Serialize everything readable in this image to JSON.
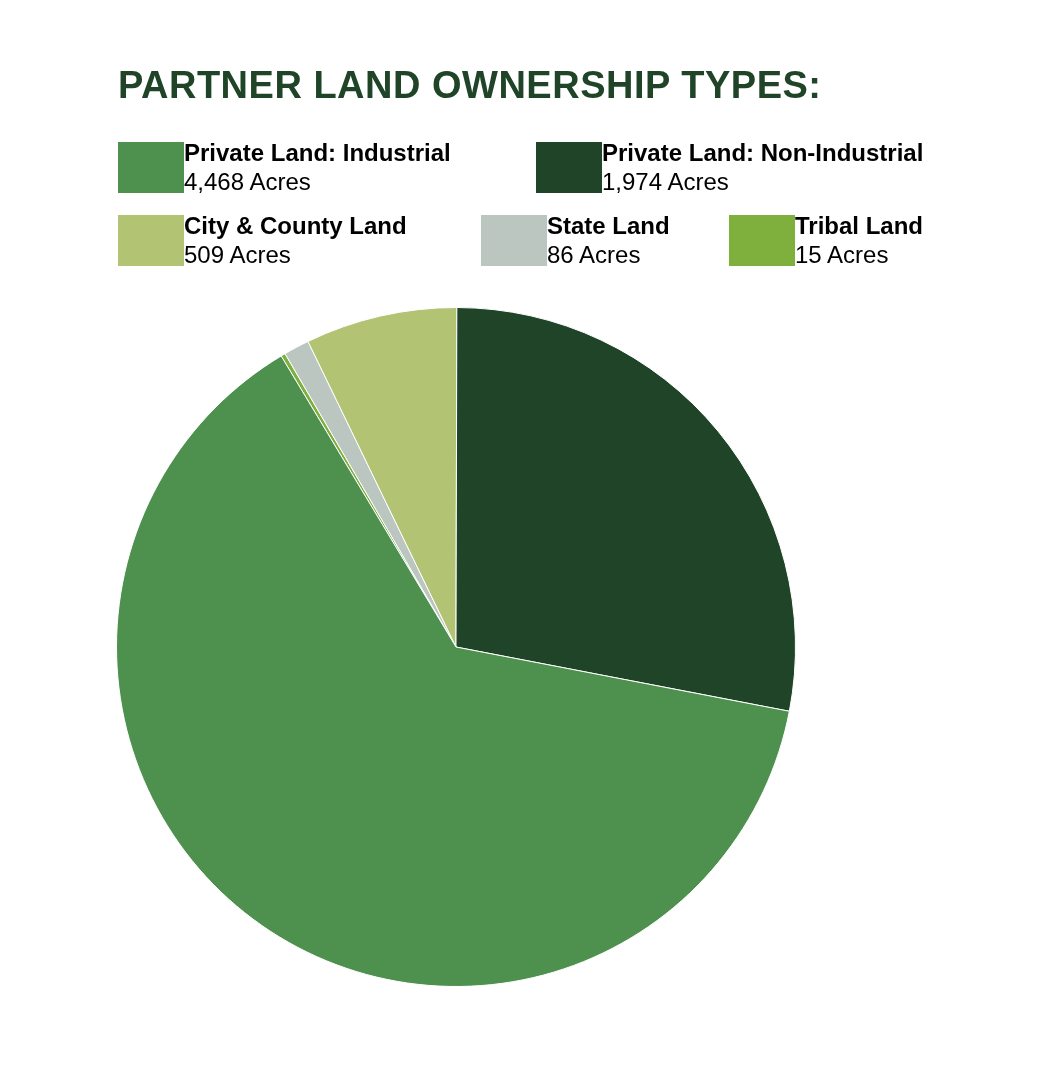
{
  "chart_data": {
    "type": "pie",
    "title": "PARTNER LAND OWNERSHIP TYPES:",
    "categories": [
      "Private Land: Industrial",
      "Private Land: Non-Industrial",
      "City & County Land",
      "State Land",
      "Tribal Land"
    ],
    "values": [
      4468,
      1974,
      509,
      86,
      15
    ],
    "value_labels": [
      "4,468 Acres",
      "1,974 Acres",
      "509 Acres",
      "86 Acres",
      "15 Acres"
    ],
    "colors": [
      "#4e914f",
      "#1f4427",
      "#b2c373",
      "#bbc6c0",
      "#7fb03d"
    ],
    "legend": "top"
  }
}
